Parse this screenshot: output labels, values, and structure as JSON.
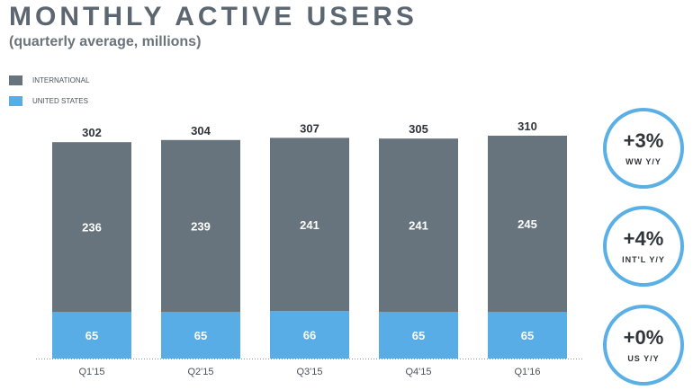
{
  "title": "MONTHLY ACTIVE USERS",
  "subtitle": "(quarterly average, millions)",
  "colors": {
    "international": "#67737d",
    "united_states": "#58ade6",
    "badge_ring": "#5ab0e6"
  },
  "legend": [
    {
      "label": "INTERNATIONAL",
      "color": "#67737d"
    },
    {
      "label": "UNITED STATES",
      "color": "#58ade6"
    }
  ],
  "badges": [
    {
      "value": "+3%",
      "caption": "WW Y/Y"
    },
    {
      "value": "+4%",
      "caption": "INT'L Y/Y"
    },
    {
      "value": "+0%",
      "caption": "US Y/Y"
    }
  ],
  "chart_data": {
    "type": "bar",
    "stacked": true,
    "categories": [
      "Q1'15",
      "Q2'15",
      "Q3'15",
      "Q4'15",
      "Q1'16"
    ],
    "series": [
      {
        "name": "UNITED STATES",
        "values": [
          65,
          65,
          66,
          65,
          65
        ]
      },
      {
        "name": "INTERNATIONAL",
        "values": [
          236,
          239,
          241,
          241,
          245
        ]
      }
    ],
    "totals": [
      302,
      304,
      307,
      305,
      310
    ],
    "legend_position": "top-left",
    "grid": false
  }
}
